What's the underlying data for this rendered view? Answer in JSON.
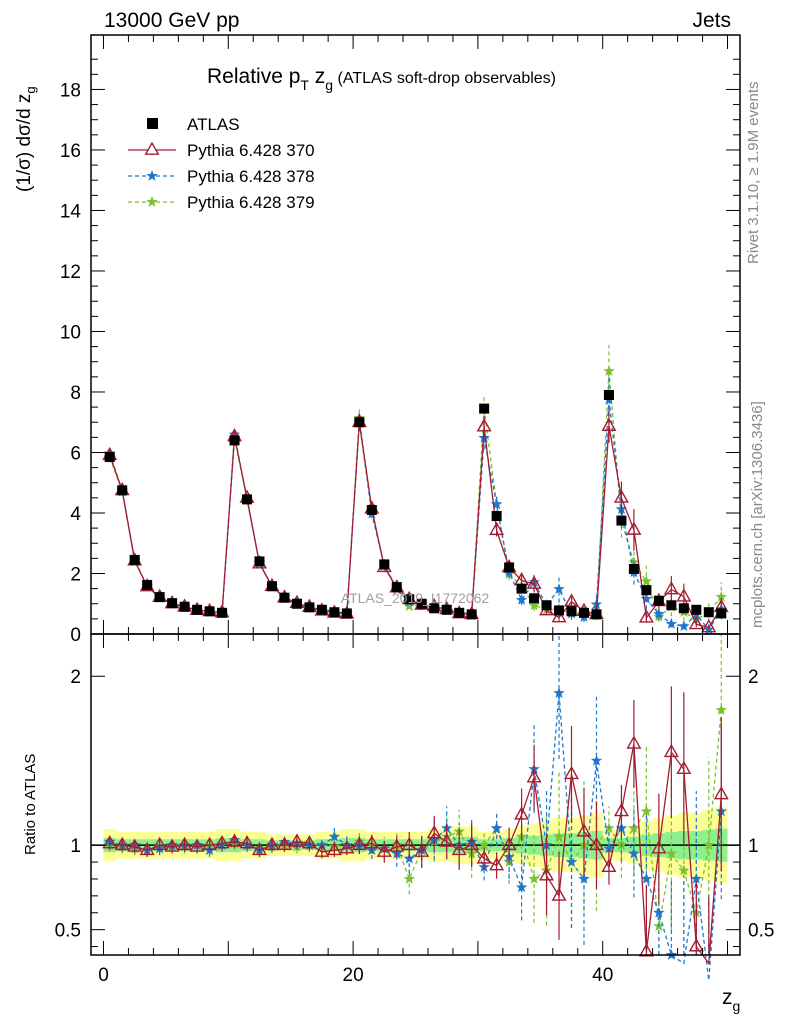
{
  "header": {
    "left": "13000 GeV pp",
    "right": "Jets"
  },
  "side": {
    "rivet": "Rivet 3.1.10, ≥ 1.9M events",
    "mcplots": "mcplots.cern.ch [arXiv:1306.3436]"
  },
  "watermark": "ATLAS_2019_I1772062",
  "chart_data": {
    "type": "scatter",
    "title": "Relative pT zg (ATLAS soft-drop observables)",
    "title_parts": {
      "main": "Relative p",
      "sub": "T",
      "mid": " z",
      "sub2": "g",
      "tail": " (ATLAS soft-drop observables)"
    },
    "ylabel": "(1/σ) dσ/d z",
    "ylabel_sub": "g",
    "xlabel": "z",
    "xlabel_sub": "g",
    "ratio_ylabel": "Ratio to ATLAS",
    "xlim": [
      -1,
      51
    ],
    "ylim": [
      0,
      19.8
    ],
    "ratio_ylim": [
      0.35,
      2.25
    ],
    "yticks": [
      0,
      2,
      4,
      6,
      8,
      10,
      12,
      14,
      16,
      18
    ],
    "xticks": [
      0,
      20,
      40
    ],
    "ratio_yticks": [
      0.5,
      1,
      2
    ],
    "ratio_yticks_labels": [
      "0.5",
      "1",
      "2"
    ],
    "x": [
      0.5,
      1.5,
      2.5,
      3.5,
      4.5,
      5.5,
      6.5,
      7.5,
      8.5,
      9.5,
      10.5,
      11.5,
      12.5,
      13.5,
      14.5,
      15.5,
      16.5,
      17.5,
      18.5,
      19.5,
      20.5,
      21.5,
      22.5,
      23.5,
      24.5,
      25.5,
      26.5,
      27.5,
      28.5,
      29.5,
      30.5,
      31.5,
      32.5,
      33.5,
      34.5,
      35.5,
      36.5,
      37.5,
      38.5,
      39.5,
      40.5,
      41.5,
      42.5,
      43.5,
      44.5,
      45.5,
      46.5,
      47.5,
      48.5,
      49.5
    ],
    "legend_position": "top-left",
    "series": [
      {
        "name": "ATLAS",
        "color": "#000000",
        "marker": "square",
        "values": [
          5.85,
          4.75,
          2.45,
          1.62,
          1.22,
          1.02,
          0.9,
          0.8,
          0.75,
          0.7,
          6.4,
          4.45,
          2.4,
          1.58,
          1.2,
          1.0,
          0.88,
          0.8,
          0.72,
          0.68,
          7.0,
          4.1,
          2.3,
          1.55,
          1.15,
          1.0,
          0.85,
          0.8,
          0.7,
          0.65,
          7.45,
          3.9,
          2.2,
          1.5,
          1.18,
          0.95,
          0.78,
          0.75,
          0.7,
          0.65,
          7.9,
          3.75,
          2.15,
          1.45,
          1.1,
          0.95,
          0.85,
          0.8,
          0.72,
          0.68
        ],
        "band_width": [
          0.06,
          0.05,
          0.05,
          0.05,
          0.05,
          0.05,
          0.05,
          0.05,
          0.05,
          0.06,
          0.06,
          0.05,
          0.05,
          0.04,
          0.04,
          0.04,
          0.04,
          0.05,
          0.05,
          0.06,
          0.06,
          0.05,
          0.05,
          0.05,
          0.05,
          0.05,
          0.06,
          0.06,
          0.07,
          0.07,
          0.05,
          0.05,
          0.06,
          0.07,
          0.08,
          0.09,
          0.1,
          0.1,
          0.11,
          0.12,
          0.06,
          0.06,
          0.07,
          0.09,
          0.1,
          0.11,
          0.12,
          0.12,
          0.13,
          0.14
        ]
      },
      {
        "name": "Pythia 6.428 370",
        "color": "#a51c30",
        "marker": "triangle",
        "ratio": [
          1.01,
          1.0,
          0.99,
          0.97,
          1.0,
          0.99,
          1.0,
          0.99,
          1.0,
          1.01,
          1.02,
          1.01,
          0.97,
          1.0,
          1.0,
          1.02,
          1.01,
          0.96,
          0.97,
          0.98,
          1.0,
          1.01,
          0.96,
          0.99,
          1.0,
          0.96,
          1.07,
          1.02,
          0.97,
          1.0,
          0.92,
          0.88,
          1.0,
          1.18,
          1.4,
          0.82,
          0.7,
          1.42,
          1.08,
          1.0,
          0.87,
          1.2,
          1.6,
          0.37,
          0.98,
          1.55,
          1.45,
          0.4,
          0.3,
          1.3
        ],
        "ratio_err": [
          0.03,
          0.03,
          0.03,
          0.03,
          0.03,
          0.03,
          0.03,
          0.03,
          0.03,
          0.03,
          0.03,
          0.03,
          0.03,
          0.03,
          0.03,
          0.03,
          0.03,
          0.03,
          0.03,
          0.03,
          0.04,
          0.04,
          0.05,
          0.05,
          0.06,
          0.07,
          0.08,
          0.08,
          0.09,
          0.1,
          0.05,
          0.06,
          0.08,
          0.12,
          0.15,
          0.18,
          0.2,
          0.22,
          0.2,
          0.2,
          0.08,
          0.12,
          0.2,
          0.3,
          0.25,
          0.3,
          0.35,
          0.3,
          0.3,
          0.35
        ]
      },
      {
        "name": "Pythia 6.428 378",
        "color": "#1f78d0",
        "marker": "star",
        "ratio": [
          1.02,
          1.0,
          1.0,
          0.97,
          0.98,
          1.0,
          1.0,
          1.0,
          0.97,
          1.0,
          1.03,
          1.0,
          0.97,
          1.0,
          1.02,
          1.01,
          1.0,
          1.0,
          1.05,
          1.0,
          1.0,
          0.97,
          0.98,
          0.95,
          0.92,
          0.97,
          1.03,
          1.1,
          1.0,
          1.02,
          0.87,
          1.1,
          0.93,
          0.75,
          1.45,
          1.0,
          1.9,
          0.9,
          0.8,
          1.5,
          0.98,
          1.1,
          0.95,
          0.8,
          0.6,
          0.35,
          0.3,
          0.8,
          0.2,
          1.2
        ],
        "ratio_err": [
          0.03,
          0.03,
          0.03,
          0.03,
          0.03,
          0.03,
          0.03,
          0.03,
          0.03,
          0.03,
          0.03,
          0.03,
          0.03,
          0.03,
          0.03,
          0.03,
          0.03,
          0.03,
          0.04,
          0.04,
          0.04,
          0.04,
          0.05,
          0.06,
          0.07,
          0.08,
          0.09,
          0.1,
          0.1,
          0.11,
          0.06,
          0.08,
          0.1,
          0.15,
          0.2,
          0.25,
          0.3,
          0.3,
          0.3,
          0.3,
          0.1,
          0.15,
          0.2,
          0.3,
          0.3,
          0.35,
          0.4,
          0.4,
          0.4,
          0.4
        ]
      },
      {
        "name": "Pythia 6.428 379",
        "color": "#7dc12e",
        "marker": "star",
        "ratio": [
          1.0,
          0.99,
          0.98,
          0.97,
          0.99,
          0.99,
          0.99,
          1.0,
          0.99,
          1.01,
          1.01,
          1.0,
          0.98,
          0.99,
          1.0,
          0.99,
          1.01,
          1.0,
          0.99,
          1.0,
          1.02,
          1.0,
          0.98,
          1.0,
          0.8,
          0.97,
          1.02,
          1.05,
          1.08,
          0.95,
          1.0,
          1.1,
          0.9,
          1.05,
          0.8,
          0.85,
          1.05,
          0.9,
          1.0,
          1.0,
          1.1,
          1.0,
          1.1,
          1.2,
          0.52,
          0.95,
          0.85,
          0.6,
          1.0,
          1.8
        ],
        "ratio_err": [
          0.03,
          0.03,
          0.03,
          0.03,
          0.03,
          0.03,
          0.03,
          0.03,
          0.03,
          0.03,
          0.03,
          0.03,
          0.03,
          0.03,
          0.03,
          0.03,
          0.03,
          0.03,
          0.04,
          0.04,
          0.04,
          0.04,
          0.05,
          0.06,
          0.07,
          0.08,
          0.09,
          0.1,
          0.1,
          0.11,
          0.06,
          0.08,
          0.1,
          0.15,
          0.2,
          0.25,
          0.3,
          0.3,
          0.3,
          0.3,
          0.1,
          0.15,
          0.2,
          0.3,
          0.3,
          0.35,
          0.4,
          0.4,
          0.4,
          0.4
        ]
      }
    ]
  }
}
